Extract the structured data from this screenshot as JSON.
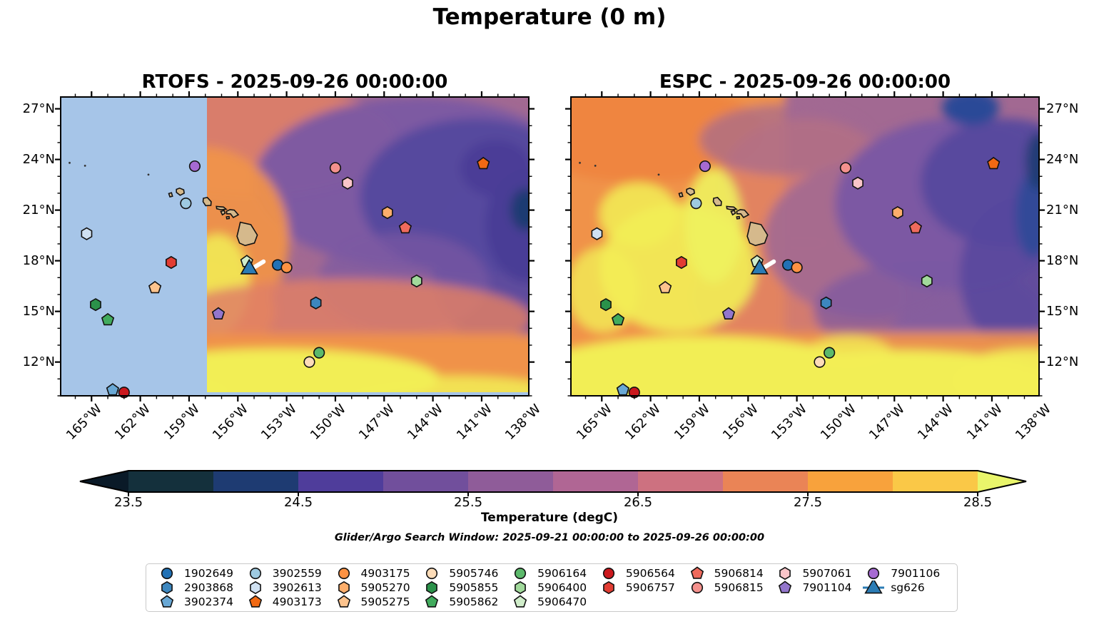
{
  "figure": {
    "title": "Temperature (0 m)",
    "subtitle": "Glider/Argo Search Window: 2025-09-21 00:00:00 to 2025-09-26 00:00:00"
  },
  "chart_data": {
    "type": "map-contour",
    "title": "Temperature (0 m)",
    "panels": [
      {
        "key": "rtofs",
        "model": "RTOFS",
        "title": "RTOFS - 2025-09-26 00:00:00",
        "ylabels_side": "left",
        "no_data_west_of_lon_w": 157.9
      },
      {
        "key": "espc",
        "model": "ESPC",
        "title": "ESPC - 2025-09-26 00:00:00",
        "ylabels_side": "right",
        "no_data_west_of_lon_w": null
      }
    ],
    "lon_axis": {
      "range_deg_w": [
        166.9,
        138.1
      ],
      "minor_step_deg": 1,
      "ticks": [
        {
          "deg_w": 165,
          "label": "165°W"
        },
        {
          "deg_w": 162,
          "label": "162°W"
        },
        {
          "deg_w": 159,
          "label": "159°W"
        },
        {
          "deg_w": 156,
          "label": "156°W"
        },
        {
          "deg_w": 153,
          "label": "153°W"
        },
        {
          "deg_w": 150,
          "label": "150°W"
        },
        {
          "deg_w": 147,
          "label": "147°W"
        },
        {
          "deg_w": 144,
          "label": "144°W"
        },
        {
          "deg_w": 141,
          "label": "141°W"
        },
        {
          "deg_w": 138,
          "label": "138°W"
        }
      ]
    },
    "lat_axis": {
      "range_deg_n": [
        10.0,
        27.7
      ],
      "minor_step_deg": 1,
      "ticks": [
        {
          "deg_n": 12,
          "label": "12°N"
        },
        {
          "deg_n": 15,
          "label": "15°N"
        },
        {
          "deg_n": 18,
          "label": "18°N"
        },
        {
          "deg_n": 21,
          "label": "21°N"
        },
        {
          "deg_n": 24,
          "label": "24°N"
        },
        {
          "deg_n": 27,
          "label": "27°N"
        }
      ]
    },
    "colorbar": {
      "label": "Temperature (degC)",
      "vmin": 23.5,
      "vmax": 28.5,
      "step": 0.5,
      "tick_labels": [
        "23.5",
        "24.5",
        "25.5",
        "26.5",
        "27.5",
        "28.5"
      ],
      "tick_values": [
        23.5,
        24.5,
        25.5,
        26.5,
        27.5,
        28.5
      ],
      "segment_colors": [
        "#14303c",
        "#1e3b72",
        "#4f3d9b",
        "#714f9c",
        "#8f5c99",
        "#b06694",
        "#cd7180",
        "#ea8456",
        "#f8a23c",
        "#fac847"
      ],
      "extend_low_color": "#0a1a28",
      "extend_high_color": "#e9f56b"
    },
    "floats": [
      {
        "id": "1902649",
        "shape": "circle",
        "color": "#2171b5",
        "lon_w": 153.55,
        "lat_n": 17.75
      },
      {
        "id": "2903868",
        "shape": "hexagon",
        "color": "#3d87bf",
        "lon_w": 151.2,
        "lat_n": 15.5
      },
      {
        "id": "3902374",
        "shape": "pentagon",
        "color": "#69a8d5",
        "lon_w": 163.7,
        "lat_n": 10.35
      },
      {
        "id": "3902559",
        "shape": "circle",
        "color": "#9ecae1",
        "lon_w": 159.2,
        "lat_n": 21.4
      },
      {
        "id": "3902613",
        "shape": "hexagon",
        "color": "#d0e1f2",
        "lon_w": 165.3,
        "lat_n": 19.6
      },
      {
        "id": "4903173",
        "shape": "pentagon",
        "color": "#f16913",
        "lon_w": 140.9,
        "lat_n": 23.75
      },
      {
        "id": "4903175",
        "shape": "circle",
        "color": "#fd9243",
        "lon_w": 153.0,
        "lat_n": 17.6
      },
      {
        "id": "5905270",
        "shape": "hexagon",
        "color": "#fdae6b",
        "lon_w": 146.8,
        "lat_n": 20.85
      },
      {
        "id": "5905275",
        "shape": "pentagon",
        "color": "#fdc38d",
        "lon_w": 161.1,
        "lat_n": 16.4
      },
      {
        "id": "5905746",
        "shape": "circle",
        "color": "#fddcb8",
        "lon_w": 151.6,
        "lat_n": 12.0
      },
      {
        "id": "5905855",
        "shape": "hexagon",
        "color": "#2b924a",
        "lon_w": 164.75,
        "lat_n": 15.4
      },
      {
        "id": "5905862",
        "shape": "pentagon",
        "color": "#41ab5d",
        "lon_w": 164.0,
        "lat_n": 14.5
      },
      {
        "id": "5906164",
        "shape": "circle",
        "color": "#5cb96b",
        "lon_w": 151.0,
        "lat_n": 12.55
      },
      {
        "id": "5906400",
        "shape": "hexagon",
        "color": "#a1d99b",
        "lon_w": 145.0,
        "lat_n": 16.8
      },
      {
        "id": "5906470",
        "shape": "pentagon",
        "color": "#d0edca",
        "lon_w": 155.45,
        "lat_n": 17.95
      },
      {
        "id": "5906564",
        "shape": "circle",
        "color": "#cb181d",
        "lon_w": 163.0,
        "lat_n": 10.2
      },
      {
        "id": "5906757",
        "shape": "hexagon",
        "color": "#e23d33",
        "lon_w": 160.1,
        "lat_n": 17.9
      },
      {
        "id": "5906814",
        "shape": "pentagon",
        "color": "#ef6a5c",
        "lon_w": 145.7,
        "lat_n": 19.95
      },
      {
        "id": "5906815",
        "shape": "circle",
        "color": "#f4918d",
        "lon_w": 150.0,
        "lat_n": 23.5
      },
      {
        "id": "5907061",
        "shape": "hexagon",
        "color": "#fac5c9",
        "lon_w": 149.25,
        "lat_n": 22.6
      },
      {
        "id": "7901104",
        "shape": "pentagon",
        "color": "#9376cc",
        "lon_w": 157.2,
        "lat_n": 14.85
      },
      {
        "id": "7901106",
        "shape": "circle",
        "color": "#a66ad2",
        "lon_w": 158.65,
        "lat_n": 23.6
      },
      {
        "id": "sg626",
        "shape": "triangle",
        "color": "#2b7cb5",
        "lon_w": 155.3,
        "lat_n": 17.5,
        "track": {
          "color": "#ffffff",
          "lon_w": [
            155.05,
            154.42
          ],
          "lat_n": [
            17.58,
            17.95
          ]
        }
      }
    ],
    "islands": [
      {
        "name": "niihau",
        "points": [
          [
            160.25,
            21.98
          ],
          [
            160.08,
            22.03
          ],
          [
            160.02,
            21.82
          ],
          [
            160.18,
            21.78
          ]
        ]
      },
      {
        "name": "kauai",
        "points": [
          [
            159.78,
            22.23
          ],
          [
            159.58,
            22.3
          ],
          [
            159.33,
            22.2
          ],
          [
            159.3,
            22.0
          ],
          [
            159.55,
            21.88
          ],
          [
            159.78,
            22.05
          ]
        ]
      },
      {
        "name": "oahu",
        "points": [
          [
            158.12,
            21.7
          ],
          [
            157.88,
            21.75
          ],
          [
            157.64,
            21.5
          ],
          [
            157.66,
            21.28
          ],
          [
            157.98,
            21.26
          ],
          [
            158.14,
            21.5
          ]
        ]
      },
      {
        "name": "molokai",
        "points": [
          [
            157.32,
            21.22
          ],
          [
            156.88,
            21.18
          ],
          [
            156.72,
            21.05
          ],
          [
            157.05,
            21.02
          ],
          [
            157.3,
            21.08
          ]
        ]
      },
      {
        "name": "lanai",
        "points": [
          [
            157.05,
            20.92
          ],
          [
            156.85,
            20.98
          ],
          [
            156.78,
            20.82
          ],
          [
            156.95,
            20.72
          ]
        ]
      },
      {
        "name": "kahoolawe",
        "points": [
          [
            156.7,
            20.6
          ],
          [
            156.54,
            20.62
          ],
          [
            156.53,
            20.5
          ],
          [
            156.68,
            20.48
          ]
        ]
      },
      {
        "name": "maui",
        "points": [
          [
            156.7,
            20.93
          ],
          [
            156.48,
            21.03
          ],
          [
            156.22,
            21.0
          ],
          [
            155.97,
            20.72
          ],
          [
            156.28,
            20.56
          ],
          [
            156.45,
            20.78
          ],
          [
            156.68,
            20.78
          ]
        ]
      },
      {
        "name": "hawaii",
        "points": [
          [
            155.85,
            20.28
          ],
          [
            155.2,
            20.14
          ],
          [
            154.8,
            19.52
          ],
          [
            154.98,
            19.05
          ],
          [
            155.55,
            18.9
          ],
          [
            155.9,
            19.05
          ],
          [
            156.05,
            19.45
          ],
          [
            155.95,
            19.85
          ]
        ]
      }
    ],
    "islet_dots": [
      [
        166.35,
        23.8
      ],
      [
        165.4,
        23.63
      ],
      [
        161.5,
        23.1
      ]
    ],
    "legend": {
      "columns": 9,
      "order": [
        "1902649",
        "2903868",
        "3902374",
        "3902559",
        "3902613",
        "4903173",
        "4903175",
        "5905270",
        "5905275",
        "5905746",
        "5905855",
        "5905862",
        "5906164",
        "5906400",
        "5906470",
        "5906564",
        "5906757",
        "5906814",
        "5906815",
        "5907061",
        "7901104",
        "7901106",
        "sg626"
      ]
    }
  }
}
